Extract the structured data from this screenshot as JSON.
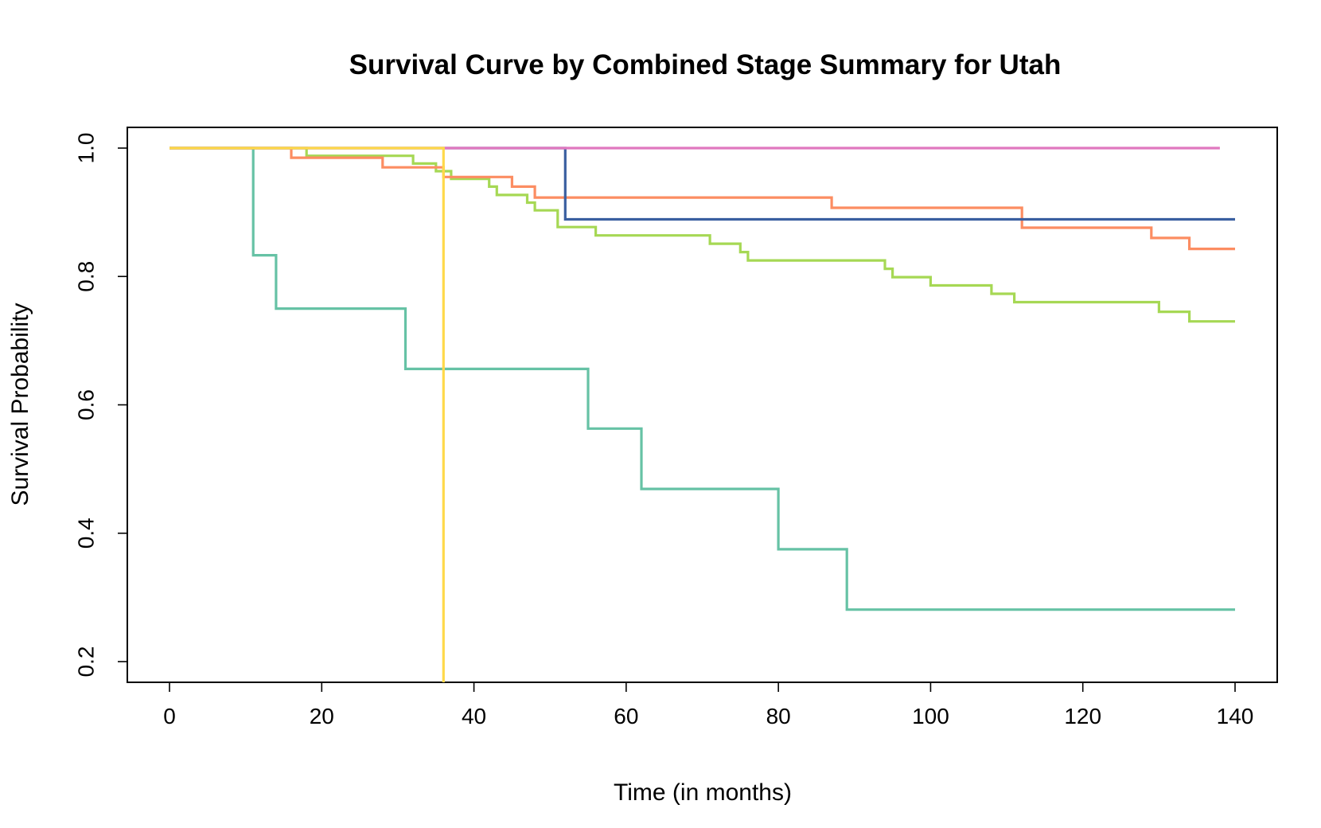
{
  "chart_data": {
    "type": "line",
    "title": "Survival Curve by Combined Stage Summary for Utah",
    "xlabel": "Time (in months)",
    "ylabel": "Survival Probability",
    "xlim": [
      0,
      140
    ],
    "ylim": [
      0.2,
      1.0
    ],
    "x_ticks": [
      0,
      20,
      40,
      60,
      80,
      100,
      120,
      140
    ],
    "y_ticks": [
      0.2,
      0.4,
      0.6,
      0.8,
      1.0
    ],
    "y_tick_labels": [
      "0.2",
      "0.4",
      "0.6",
      "0.8",
      "1.0"
    ],
    "grid": false,
    "legend": "none",
    "series": [
      {
        "color": "#66c2a5",
        "points": [
          [
            0,
            1.0
          ],
          [
            11,
            1.0
          ],
          [
            11,
            0.833
          ],
          [
            14,
            0.833
          ],
          [
            14,
            0.75
          ],
          [
            31,
            0.75
          ],
          [
            31,
            0.656
          ],
          [
            55,
            0.656
          ],
          [
            55,
            0.563
          ],
          [
            62,
            0.563
          ],
          [
            62,
            0.469
          ],
          [
            80,
            0.469
          ],
          [
            80,
            0.375
          ],
          [
            89,
            0.375
          ],
          [
            89,
            0.281
          ],
          [
            140,
            0.281
          ]
        ]
      },
      {
        "color": "#a6d854",
        "points": [
          [
            0,
            1.0
          ],
          [
            18,
            1.0
          ],
          [
            18,
            0.988
          ],
          [
            32,
            0.988
          ],
          [
            32,
            0.976
          ],
          [
            35,
            0.976
          ],
          [
            35,
            0.964
          ],
          [
            37,
            0.964
          ],
          [
            37,
            0.952
          ],
          [
            42,
            0.952
          ],
          [
            42,
            0.94
          ],
          [
            43,
            0.94
          ],
          [
            43,
            0.927
          ],
          [
            47,
            0.927
          ],
          [
            47,
            0.915
          ],
          [
            48,
            0.915
          ],
          [
            48,
            0.903
          ],
          [
            51,
            0.903
          ],
          [
            51,
            0.877
          ],
          [
            56,
            0.877
          ],
          [
            56,
            0.864
          ],
          [
            71,
            0.864
          ],
          [
            71,
            0.851
          ],
          [
            75,
            0.851
          ],
          [
            75,
            0.838
          ],
          [
            76,
            0.838
          ],
          [
            76,
            0.825
          ],
          [
            94,
            0.825
          ],
          [
            94,
            0.812
          ],
          [
            95,
            0.812
          ],
          [
            95,
            0.799
          ],
          [
            100,
            0.799
          ],
          [
            100,
            0.786
          ],
          [
            108,
            0.786
          ],
          [
            108,
            0.773
          ],
          [
            111,
            0.773
          ],
          [
            111,
            0.76
          ],
          [
            130,
            0.76
          ],
          [
            130,
            0.745
          ],
          [
            134,
            0.745
          ],
          [
            134,
            0.73
          ],
          [
            140,
            0.73
          ]
        ]
      },
      {
        "color": "#fc8d62",
        "points": [
          [
            0,
            1.0
          ],
          [
            16,
            1.0
          ],
          [
            16,
            0.985
          ],
          [
            28,
            0.985
          ],
          [
            28,
            0.97
          ],
          [
            36,
            0.97
          ],
          [
            36,
            0.955
          ],
          [
            45,
            0.955
          ],
          [
            45,
            0.94
          ],
          [
            48,
            0.94
          ],
          [
            48,
            0.923
          ],
          [
            87,
            0.923
          ],
          [
            87,
            0.907
          ],
          [
            112,
            0.907
          ],
          [
            112,
            0.876
          ],
          [
            129,
            0.876
          ],
          [
            129,
            0.86
          ],
          [
            134,
            0.86
          ],
          [
            134,
            0.843
          ],
          [
            140,
            0.843
          ]
        ]
      },
      {
        "color": "#3a5fa0",
        "points": [
          [
            0,
            1.0
          ],
          [
            52,
            1.0
          ],
          [
            52,
            0.889
          ],
          [
            140,
            0.889
          ]
        ]
      },
      {
        "color": "#e078bf",
        "points": [
          [
            0,
            1.0
          ],
          [
            138,
            1.0
          ]
        ]
      },
      {
        "color": "#ffd94a",
        "points": [
          [
            0,
            1.0
          ],
          [
            36,
            1.0
          ],
          [
            36,
            0.0
          ]
        ]
      }
    ]
  }
}
